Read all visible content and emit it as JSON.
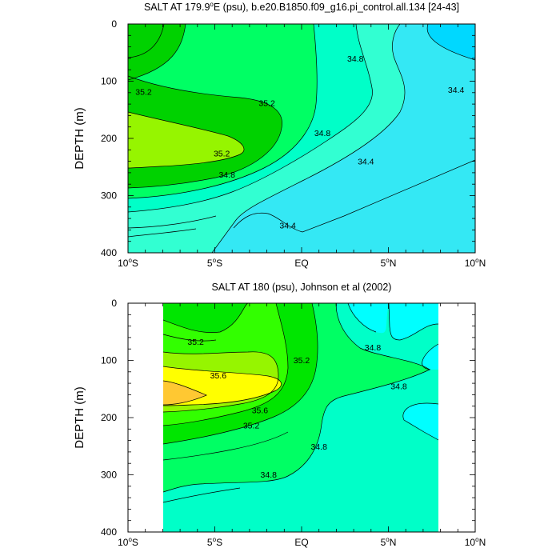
{
  "chart_data": [
    {
      "type": "contour",
      "title_text": "SALT AT 179.9",
      "title_sup": "o",
      "title_rest": "E (psu), b.e20.B1850.f09_g16.pi_control.all.134 [24-43]",
      "ylabel": "DEPTH (m)",
      "xlabel": "",
      "xlim": [
        -10,
        10
      ],
      "ylim": [
        400,
        0
      ],
      "x_ticks": [
        {
          "value": -10,
          "num": "10",
          "sup": "o",
          "hemi": "S"
        },
        {
          "value": -5,
          "num": "5",
          "sup": "o",
          "hemi": "S"
        },
        {
          "value": 0,
          "num": "EQ",
          "sup": "",
          "hemi": ""
        },
        {
          "value": 5,
          "num": "5",
          "sup": "o",
          "hemi": "N"
        },
        {
          "value": 10,
          "num": "10",
          "sup": "o",
          "hemi": "N"
        }
      ],
      "y_ticks": [
        0,
        100,
        200,
        300,
        400
      ],
      "contour_interval": 0.2,
      "contour_labels": [
        {
          "text": "35.2",
          "lat": -9.1,
          "depth": 118
        },
        {
          "text": "35.2",
          "lat": -2.0,
          "depth": 138
        },
        {
          "text": "35.2",
          "lat": -4.6,
          "depth": 226
        },
        {
          "text": "34.8",
          "lat": -4.3,
          "depth": 263
        },
        {
          "text": "34.8",
          "lat": 1.2,
          "depth": 190
        },
        {
          "text": "34.8",
          "lat": 3.1,
          "depth": 60
        },
        {
          "text": "34.4",
          "lat": 3.7,
          "depth": 240
        },
        {
          "text": "34.4",
          "lat": -0.8,
          "depth": 352
        },
        {
          "text": "34.4",
          "lat": 8.9,
          "depth": 115
        }
      ],
      "fill_colors": [
        "#32ff00",
        "#00d200",
        "#00ff64",
        "#00ffc8",
        "#32ffd2",
        "#34e8f4",
        "#00d8ff"
      ]
    },
    {
      "type": "contour",
      "title_text": "SALT AT 180 (psu), Johnson et al (2002)",
      "title_sup": "",
      "title_rest": "",
      "ylabel": "DEPTH (m)",
      "xlabel": "",
      "xlim": [
        -10,
        10
      ],
      "ylim": [
        400,
        0
      ],
      "data_lat_range": [
        -8,
        8
      ],
      "x_ticks": [
        {
          "value": -10,
          "num": "10",
          "sup": "o",
          "hemi": "S"
        },
        {
          "value": -5,
          "num": "5",
          "sup": "o",
          "hemi": "S"
        },
        {
          "value": 0,
          "num": "EQ",
          "sup": "",
          "hemi": ""
        },
        {
          "value": 5,
          "num": "5",
          "sup": "o",
          "hemi": "N"
        },
        {
          "value": 10,
          "num": "10",
          "sup": "o",
          "hemi": "N"
        }
      ],
      "y_ticks": [
        0,
        100,
        200,
        300,
        400
      ],
      "contour_interval": 0.2,
      "contour_labels": [
        {
          "text": "35.2",
          "lat": -6.1,
          "depth": 67
        },
        {
          "text": "35.6",
          "lat": -4.8,
          "depth": 126
        },
        {
          "text": "35.6",
          "lat": -2.4,
          "depth": 187
        },
        {
          "text": "35.2",
          "lat": -2.9,
          "depth": 213
        },
        {
          "text": "35.2",
          "lat": 0.0,
          "depth": 99
        },
        {
          "text": "34.8",
          "lat": 4.1,
          "depth": 77
        },
        {
          "text": "34.8",
          "lat": 5.6,
          "depth": 145
        },
        {
          "text": "34.8",
          "lat": 1.0,
          "depth": 250
        },
        {
          "text": "34.8",
          "lat": -1.9,
          "depth": 299
        }
      ],
      "fill_colors": [
        "#ffc832",
        "#ffff00",
        "#96f500",
        "#32ff00",
        "#00e600",
        "#00ff64",
        "#00ffc8",
        "#00ffff"
      ]
    }
  ]
}
